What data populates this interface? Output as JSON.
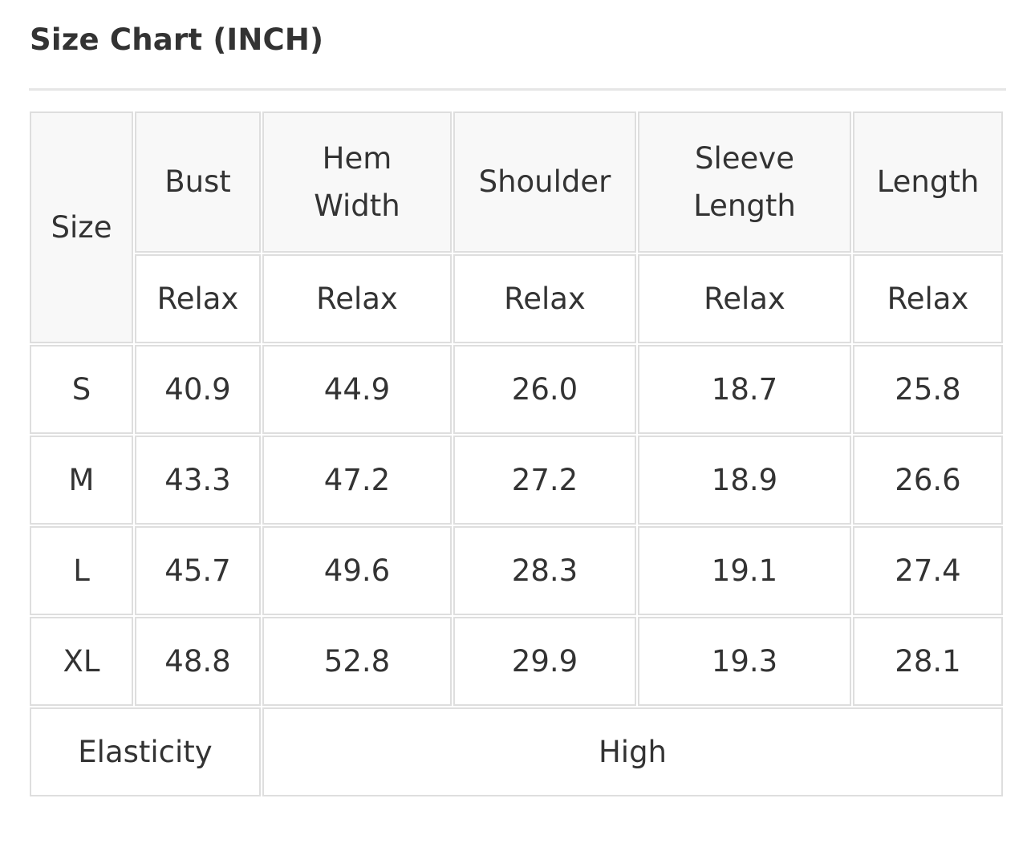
{
  "title": "Size Chart (INCH)",
  "table": {
    "size_header": "Size",
    "columns": [
      "Bust",
      "Hem Width",
      "Shoulder",
      "Sleeve Length",
      "Length"
    ],
    "column_lines": [
      [
        "Bust"
      ],
      [
        "Hem",
        "Width"
      ],
      [
        "Shoulder"
      ],
      [
        "Sleeve",
        "Length"
      ],
      [
        "Length"
      ]
    ],
    "subheaders": [
      "Relax",
      "Relax",
      "Relax",
      "Relax",
      "Relax"
    ],
    "rows": [
      {
        "size": "S",
        "values": [
          "40.9",
          "44.9",
          "26.0",
          "18.7",
          "25.8"
        ]
      },
      {
        "size": "M",
        "values": [
          "43.3",
          "47.2",
          "27.2",
          "18.9",
          "26.6"
        ]
      },
      {
        "size": "L",
        "values": [
          "45.7",
          "49.6",
          "28.3",
          "19.1",
          "27.4"
        ]
      },
      {
        "size": "XL",
        "values": [
          "48.8",
          "52.8",
          "29.9",
          "19.3",
          "28.1"
        ]
      }
    ],
    "elasticity_label": "Elasticity",
    "elasticity_value": "High"
  }
}
